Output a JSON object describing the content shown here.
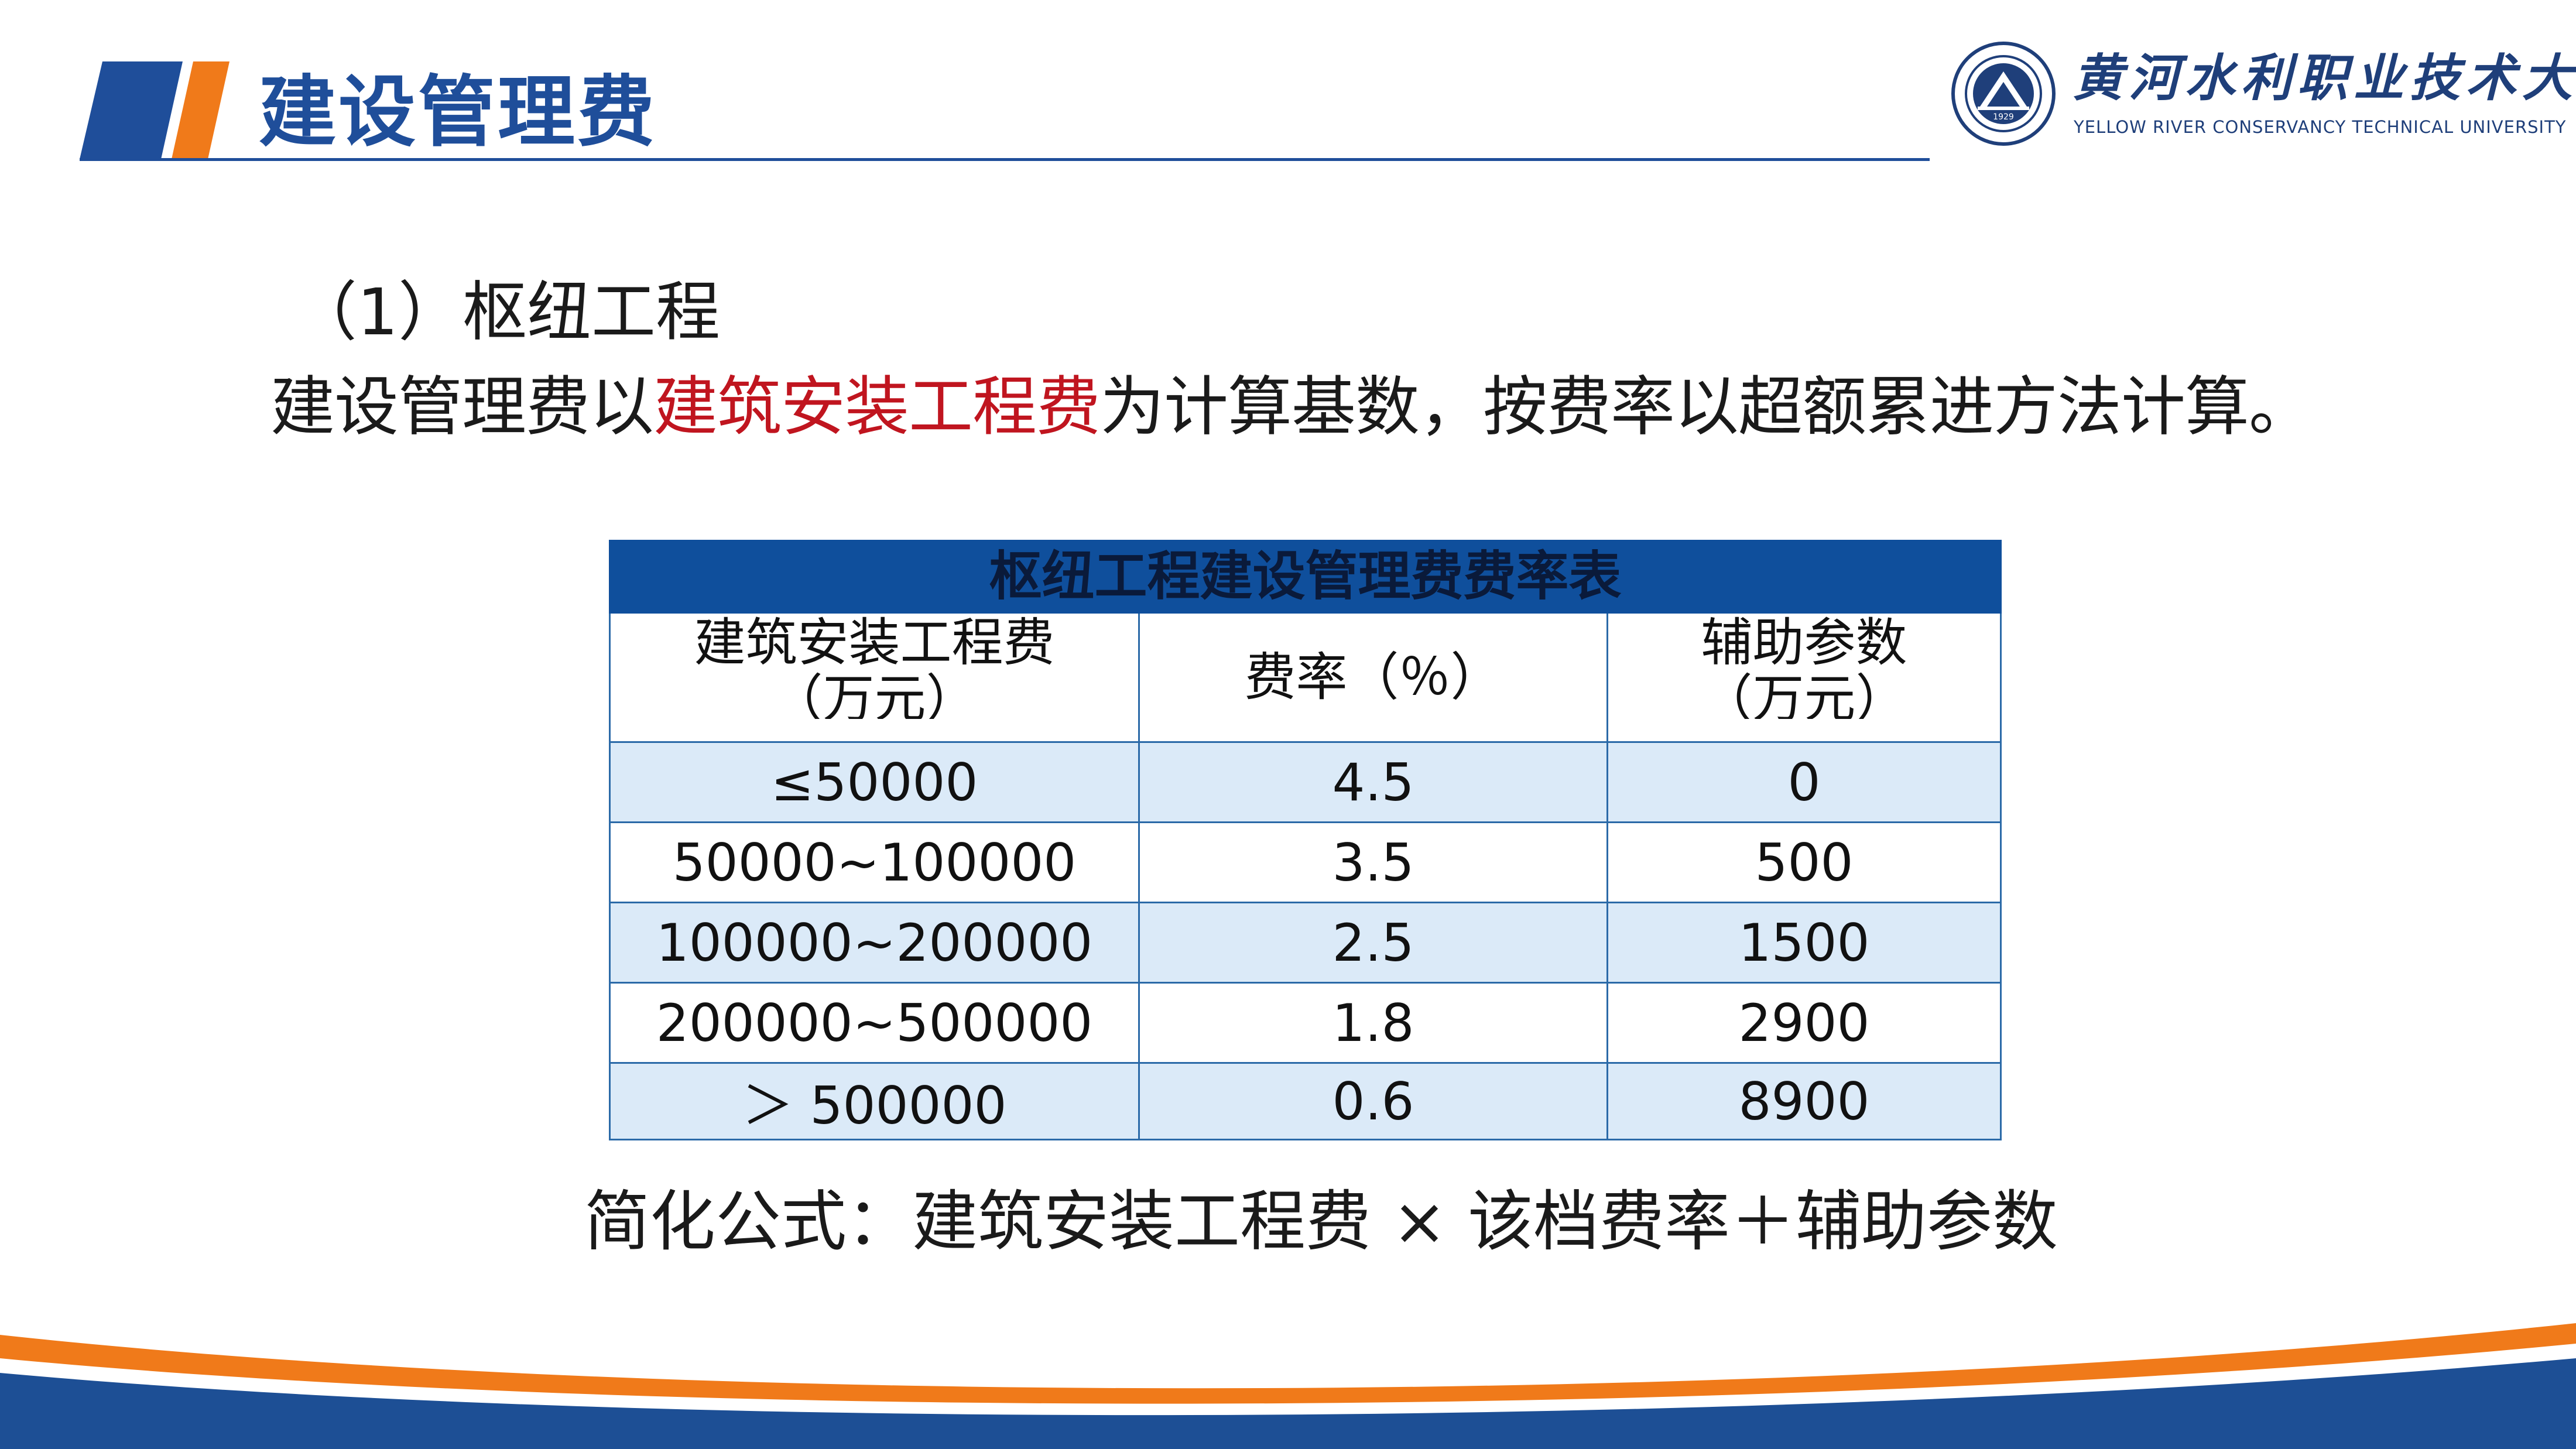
{
  "header": {
    "title": "建设管理费",
    "colors": {
      "brand_blue": "#1f4e9a",
      "accent_orange": "#f07a1a"
    }
  },
  "logo": {
    "name_cn": "黄河水利职业技术大学",
    "name_en": "YELLOW RIVER CONSERVANCY TECHNICAL UNIVERSITY",
    "emblem_text": "1929"
  },
  "content": {
    "subtitle": "（1）枢纽工程",
    "intro_before": "建设管理费以",
    "intro_highlight": "建筑安装工程费",
    "intro_after": "为计算基数，按费率以超额累进方法计算。",
    "highlight_color": "#c0151f"
  },
  "table": {
    "caption": "枢纽工程建设管理费费率表",
    "headers": [
      {
        "line1": "建筑安装工程费",
        "line2": "（万元）"
      },
      {
        "line1": "费率（％）"
      },
      {
        "line1": "辅助参数",
        "line2": "（万元）"
      }
    ],
    "rows": [
      [
        "≤50000",
        "4.5",
        "0"
      ],
      [
        "50000~100000",
        "3.5",
        "500"
      ],
      [
        "100000~200000",
        "2.5",
        "1500"
      ],
      [
        "200000~500000",
        "1.8",
        "2900"
      ],
      [
        "＞ 500000",
        "0.6",
        "8900"
      ]
    ]
  },
  "formula": "简化公式：建筑安装工程费 × 该档费率＋辅助参数",
  "footer": {
    "colors": {
      "navy": "#1d4f95",
      "orange": "#f07a1a"
    }
  }
}
